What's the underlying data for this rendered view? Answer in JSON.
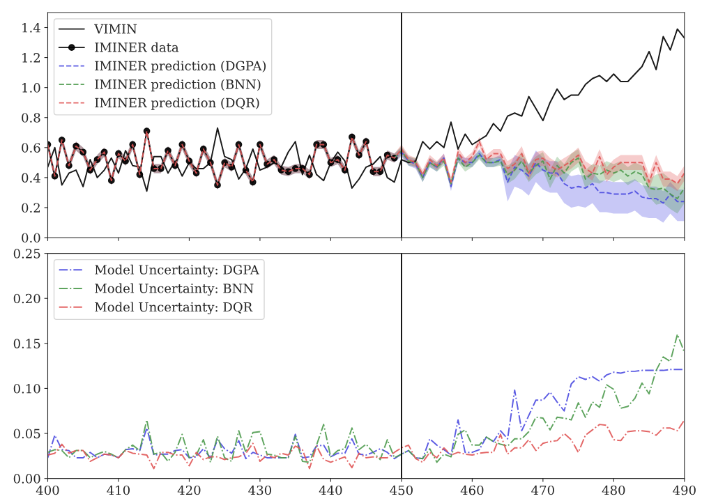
{
  "chart_data": [
    {
      "type": "line",
      "xlim": [
        400,
        490
      ],
      "ylim": [
        0,
        1.5
      ],
      "xticks": [
        400,
        410,
        420,
        430,
        440,
        450,
        460,
        470,
        480,
        490
      ],
      "yticks": [
        {
          "value": 0,
          "label": "0.0"
        },
        {
          "value": 0.2,
          "label": "0.2"
        },
        {
          "value": 0.4,
          "label": "0.4"
        },
        {
          "value": 0.6,
          "label": "0.6"
        },
        {
          "value": 0.8,
          "label": "0.8"
        },
        {
          "value": 1.0,
          "label": "1.0"
        },
        {
          "value": 1.2,
          "label": "1.2"
        },
        {
          "value": 1.4,
          "label": "1.4"
        }
      ],
      "tick_labels": "y",
      "legend": "top left",
      "ref_lines": [
        {
          "axis": "x",
          "value": 450,
          "color": "#000000"
        }
      ],
      "x": [
        400,
        401,
        402,
        403,
        404,
        405,
        406,
        407,
        408,
        409,
        410,
        411,
        412,
        413,
        414,
        415,
        416,
        417,
        418,
        419,
        420,
        421,
        422,
        423,
        424,
        425,
        426,
        427,
        428,
        429,
        430,
        431,
        432,
        433,
        434,
        435,
        436,
        437,
        438,
        439,
        440,
        441,
        442,
        443,
        444,
        445,
        446,
        447,
        448,
        449,
        450,
        451,
        452,
        453,
        454,
        455,
        456,
        457,
        458,
        459,
        460,
        461,
        462,
        463,
        464,
        465,
        466,
        467,
        468,
        469,
        470,
        471,
        472,
        473,
        474,
        475,
        476,
        477,
        478,
        479,
        480,
        481,
        482,
        483,
        484,
        485,
        486,
        487,
        488,
        489,
        490
      ],
      "series": [
        {
          "name": "VIMIN",
          "color": "#000000",
          "line_style": "solid",
          "marker": "none",
          "values": [
            0.47,
            0.6,
            0.35,
            0.43,
            0.45,
            0.34,
            0.52,
            0.4,
            0.45,
            0.53,
            0.43,
            0.58,
            0.48,
            0.47,
            0.31,
            0.54,
            0.54,
            0.43,
            0.51,
            0.41,
            0.5,
            0.46,
            0.46,
            0.5,
            0.73,
            0.54,
            0.52,
            0.39,
            0.46,
            0.59,
            0.45,
            0.47,
            0.5,
            0.47,
            0.57,
            0.64,
            0.42,
            0.55,
            0.42,
            0.38,
            0.5,
            0.57,
            0.51,
            0.33,
            0.39,
            0.47,
            0.49,
            0.54,
            0.4,
            0.37,
            0.52,
            0.5,
            0.51,
            0.64,
            0.59,
            0.64,
            0.6,
            0.77,
            0.59,
            0.69,
            0.62,
            0.65,
            0.68,
            0.76,
            0.71,
            0.81,
            0.83,
            0.81,
            0.94,
            0.86,
            0.78,
            0.9,
            0.99,
            0.92,
            0.95,
            0.95,
            1.02,
            1.06,
            1.08,
            1.04,
            1.09,
            1.04,
            1.04,
            1.09,
            1.14,
            1.24,
            1.12,
            1.34,
            1.25,
            1.39,
            1.33
          ]
        },
        {
          "name": "IMINER data",
          "color": "#000000",
          "line_style": "solid",
          "marker": "circle",
          "x": [
            400,
            401,
            402,
            403,
            404,
            405,
            406,
            407,
            408,
            409,
            410,
            411,
            412,
            413,
            414,
            415,
            416,
            417,
            418,
            419,
            420,
            421,
            422,
            423,
            424,
            425,
            426,
            427,
            428,
            429,
            430,
            431,
            432,
            433,
            434,
            435,
            436,
            437,
            438,
            439,
            440,
            441,
            442,
            443,
            444,
            445,
            446,
            447,
            448,
            449
          ],
          "values": [
            0.62,
            0.41,
            0.65,
            0.48,
            0.61,
            0.57,
            0.45,
            0.52,
            0.57,
            0.38,
            0.56,
            0.51,
            0.62,
            0.42,
            0.71,
            0.46,
            0.46,
            0.58,
            0.48,
            0.62,
            0.51,
            0.43,
            0.59,
            0.5,
            0.35,
            0.5,
            0.47,
            0.62,
            0.45,
            0.37,
            0.62,
            0.49,
            0.52,
            0.45,
            0.44,
            0.46,
            0.46,
            0.42,
            0.62,
            0.62,
            0.5,
            0.52,
            0.45,
            0.67,
            0.55,
            0.64,
            0.44,
            0.44,
            0.55,
            0.53
          ]
        },
        {
          "name": "IMINER prediction (DGPA)",
          "color": "#4a4ae0",
          "line_style": "dashed",
          "marker": "none",
          "values": [
            null,
            null,
            null,
            null,
            null,
            null,
            null,
            null,
            null,
            null,
            null,
            null,
            null,
            null,
            null,
            null,
            null,
            null,
            null,
            null,
            null,
            null,
            null,
            null,
            null,
            null,
            null,
            null,
            null,
            null,
            null,
            null,
            null,
            null,
            null,
            null,
            null,
            null,
            null,
            null,
            null,
            null,
            null,
            null,
            null,
            null,
            null,
            null,
            null,
            0.53,
            0.57,
            0.51,
            0.49,
            0.4,
            0.5,
            0.47,
            0.53,
            0.34,
            0.53,
            0.5,
            0.5,
            0.56,
            0.5,
            0.5,
            0.52,
            0.37,
            0.47,
            0.45,
            0.41,
            0.5,
            0.45,
            0.43,
            0.43,
            0.36,
            0.33,
            0.34,
            0.33,
            0.36,
            0.3,
            0.3,
            0.29,
            0.29,
            0.29,
            0.31,
            0.27,
            0.26,
            0.26,
            0.23,
            0.29,
            0.24,
            0.24
          ],
          "lower": [
            0.59,
            0.38,
            0.62,
            0.45,
            0.58,
            0.54,
            0.42,
            0.49,
            0.54,
            0.35,
            0.53,
            0.48,
            0.59,
            0.39,
            0.68,
            0.43,
            0.43,
            0.55,
            0.45,
            0.59,
            0.48,
            0.4,
            0.56,
            0.47,
            0.32,
            0.47,
            0.44,
            0.59,
            0.42,
            0.34,
            0.59,
            0.46,
            0.49,
            0.42,
            0.41,
            0.43,
            0.43,
            0.39,
            0.59,
            0.59,
            0.47,
            0.49,
            0.42,
            0.64,
            0.52,
            0.61,
            0.41,
            0.41,
            0.52,
            0.5,
            0.54,
            0.48,
            0.46,
            0.37,
            0.47,
            0.44,
            0.5,
            0.31,
            0.5,
            0.47,
            0.47,
            0.53,
            0.47,
            0.47,
            0.49,
            0.24,
            0.34,
            0.32,
            0.28,
            0.37,
            0.32,
            0.3,
            0.3,
            0.23,
            0.2,
            0.21,
            0.2,
            0.23,
            0.17,
            0.17,
            0.16,
            0.16,
            0.16,
            0.18,
            0.14,
            0.13,
            0.13,
            0.1,
            0.16,
            0.11,
            0.11
          ],
          "upper": [
            0.65,
            0.44,
            0.68,
            0.51,
            0.64,
            0.6,
            0.48,
            0.55,
            0.6,
            0.41,
            0.59,
            0.54,
            0.65,
            0.45,
            0.74,
            0.49,
            0.49,
            0.61,
            0.51,
            0.65,
            0.54,
            0.46,
            0.62,
            0.53,
            0.38,
            0.53,
            0.5,
            0.65,
            0.48,
            0.4,
            0.65,
            0.52,
            0.55,
            0.48,
            0.47,
            0.49,
            0.49,
            0.45,
            0.65,
            0.65,
            0.53,
            0.55,
            0.48,
            0.7,
            0.58,
            0.67,
            0.47,
            0.47,
            0.58,
            0.56,
            0.6,
            0.54,
            0.52,
            0.43,
            0.53,
            0.5,
            0.56,
            0.37,
            0.56,
            0.53,
            0.53,
            0.59,
            0.53,
            0.53,
            0.55,
            0.45,
            0.55,
            0.53,
            0.49,
            0.58,
            0.53,
            0.51,
            0.51,
            0.44,
            0.41,
            0.42,
            0.41,
            0.44,
            0.38,
            0.38,
            0.37,
            0.37,
            0.37,
            0.39,
            0.35,
            0.34,
            0.34,
            0.31,
            0.37,
            0.32,
            0.32
          ]
        },
        {
          "name": "IMINER prediction (BNN)",
          "color": "#4c9a4c",
          "line_style": "dashed",
          "marker": "none",
          "values": [
            null,
            null,
            null,
            null,
            null,
            null,
            null,
            null,
            null,
            null,
            null,
            null,
            null,
            null,
            null,
            null,
            null,
            null,
            null,
            null,
            null,
            null,
            null,
            null,
            null,
            null,
            null,
            null,
            null,
            null,
            null,
            null,
            null,
            null,
            null,
            null,
            null,
            null,
            null,
            null,
            null,
            null,
            null,
            null,
            null,
            null,
            null,
            null,
            null,
            0.53,
            0.58,
            0.51,
            0.5,
            0.4,
            0.5,
            0.47,
            0.51,
            0.36,
            0.53,
            0.47,
            0.5,
            0.55,
            0.5,
            0.5,
            0.51,
            0.42,
            0.45,
            0.51,
            0.43,
            0.48,
            0.51,
            0.39,
            0.48,
            0.43,
            0.5,
            0.53,
            0.39,
            0.43,
            0.42,
            0.45,
            0.43,
            0.45,
            0.41,
            0.44,
            0.42,
            0.33,
            0.32,
            0.33,
            0.29,
            0.26,
            0.33
          ],
          "lower": [
            0.59,
            0.38,
            0.62,
            0.45,
            0.58,
            0.54,
            0.42,
            0.49,
            0.54,
            0.35,
            0.53,
            0.48,
            0.59,
            0.39,
            0.68,
            0.43,
            0.43,
            0.55,
            0.45,
            0.59,
            0.48,
            0.4,
            0.56,
            0.47,
            0.32,
            0.47,
            0.44,
            0.59,
            0.42,
            0.34,
            0.59,
            0.46,
            0.49,
            0.42,
            0.41,
            0.43,
            0.43,
            0.39,
            0.59,
            0.59,
            0.47,
            0.49,
            0.42,
            0.64,
            0.52,
            0.61,
            0.41,
            0.41,
            0.52,
            0.5,
            0.55,
            0.48,
            0.47,
            0.37,
            0.47,
            0.44,
            0.48,
            0.33,
            0.5,
            0.44,
            0.47,
            0.52,
            0.47,
            0.47,
            0.48,
            0.36,
            0.39,
            0.45,
            0.37,
            0.42,
            0.45,
            0.33,
            0.42,
            0.37,
            0.44,
            0.47,
            0.33,
            0.37,
            0.36,
            0.39,
            0.37,
            0.39,
            0.35,
            0.38,
            0.36,
            0.27,
            0.22,
            0.23,
            0.19,
            0.16,
            0.23
          ],
          "upper": [
            0.65,
            0.44,
            0.68,
            0.51,
            0.64,
            0.6,
            0.48,
            0.55,
            0.6,
            0.41,
            0.59,
            0.54,
            0.65,
            0.45,
            0.74,
            0.49,
            0.49,
            0.61,
            0.51,
            0.65,
            0.54,
            0.46,
            0.62,
            0.53,
            0.38,
            0.53,
            0.5,
            0.65,
            0.48,
            0.4,
            0.65,
            0.52,
            0.55,
            0.48,
            0.47,
            0.49,
            0.49,
            0.45,
            0.65,
            0.65,
            0.53,
            0.55,
            0.48,
            0.7,
            0.58,
            0.67,
            0.47,
            0.47,
            0.58,
            0.56,
            0.61,
            0.54,
            0.53,
            0.43,
            0.53,
            0.5,
            0.54,
            0.39,
            0.56,
            0.5,
            0.53,
            0.58,
            0.53,
            0.53,
            0.54,
            0.48,
            0.51,
            0.57,
            0.49,
            0.54,
            0.57,
            0.45,
            0.54,
            0.49,
            0.56,
            0.59,
            0.45,
            0.49,
            0.48,
            0.51,
            0.49,
            0.51,
            0.47,
            0.5,
            0.48,
            0.39,
            0.42,
            0.43,
            0.39,
            0.36,
            0.43
          ]
        },
        {
          "name": "IMINER prediction (DQR)",
          "color": "#e05555",
          "line_style": "dashed",
          "marker": "none",
          "values": [
            0.62,
            0.41,
            0.65,
            0.48,
            0.61,
            0.57,
            0.45,
            0.52,
            0.57,
            0.38,
            0.56,
            0.51,
            0.62,
            0.42,
            0.71,
            0.46,
            0.46,
            0.58,
            0.48,
            0.62,
            0.51,
            0.43,
            0.59,
            0.5,
            0.35,
            0.5,
            0.47,
            0.62,
            0.45,
            0.37,
            0.62,
            0.49,
            0.52,
            0.45,
            0.44,
            0.46,
            0.46,
            0.42,
            0.62,
            0.62,
            0.5,
            0.52,
            0.45,
            0.67,
            0.55,
            0.64,
            0.44,
            0.44,
            0.55,
            0.53,
            0.59,
            0.52,
            0.5,
            0.42,
            0.52,
            0.48,
            0.53,
            0.37,
            0.57,
            0.5,
            0.54,
            0.64,
            0.52,
            0.56,
            0.56,
            0.46,
            0.49,
            0.56,
            0.43,
            0.52,
            0.53,
            0.48,
            0.45,
            0.48,
            0.51,
            0.55,
            0.46,
            0.43,
            0.54,
            0.42,
            0.47,
            0.5,
            0.5,
            0.5,
            0.5,
            0.37,
            0.5,
            0.39,
            0.39,
            0.36,
            0.43
          ],
          "lower": [
            0.59,
            0.38,
            0.62,
            0.45,
            0.58,
            0.54,
            0.42,
            0.49,
            0.54,
            0.35,
            0.53,
            0.48,
            0.59,
            0.39,
            0.68,
            0.43,
            0.43,
            0.55,
            0.45,
            0.59,
            0.48,
            0.4,
            0.56,
            0.47,
            0.32,
            0.47,
            0.44,
            0.59,
            0.42,
            0.34,
            0.59,
            0.46,
            0.49,
            0.42,
            0.41,
            0.43,
            0.43,
            0.39,
            0.59,
            0.59,
            0.47,
            0.49,
            0.42,
            0.64,
            0.52,
            0.61,
            0.41,
            0.41,
            0.52,
            0.5,
            0.56,
            0.49,
            0.47,
            0.39,
            0.49,
            0.45,
            0.5,
            0.34,
            0.54,
            0.47,
            0.51,
            0.61,
            0.49,
            0.53,
            0.53,
            0.41,
            0.44,
            0.51,
            0.38,
            0.47,
            0.48,
            0.43,
            0.4,
            0.43,
            0.46,
            0.5,
            0.41,
            0.38,
            0.49,
            0.37,
            0.42,
            0.45,
            0.45,
            0.45,
            0.45,
            0.32,
            0.45,
            0.34,
            0.34,
            0.31,
            0.38
          ],
          "upper": [
            0.65,
            0.44,
            0.68,
            0.51,
            0.64,
            0.6,
            0.48,
            0.55,
            0.6,
            0.41,
            0.59,
            0.54,
            0.65,
            0.45,
            0.74,
            0.49,
            0.49,
            0.61,
            0.51,
            0.65,
            0.54,
            0.46,
            0.62,
            0.53,
            0.38,
            0.53,
            0.5,
            0.65,
            0.48,
            0.4,
            0.65,
            0.52,
            0.55,
            0.48,
            0.47,
            0.49,
            0.49,
            0.45,
            0.65,
            0.65,
            0.53,
            0.55,
            0.48,
            0.7,
            0.58,
            0.67,
            0.47,
            0.47,
            0.58,
            0.56,
            0.62,
            0.55,
            0.53,
            0.45,
            0.55,
            0.51,
            0.56,
            0.4,
            0.6,
            0.53,
            0.57,
            0.67,
            0.55,
            0.59,
            0.59,
            0.51,
            0.54,
            0.61,
            0.48,
            0.57,
            0.58,
            0.53,
            0.5,
            0.53,
            0.56,
            0.6,
            0.51,
            0.48,
            0.59,
            0.47,
            0.52,
            0.55,
            0.55,
            0.55,
            0.55,
            0.42,
            0.55,
            0.44,
            0.44,
            0.41,
            0.48
          ]
        }
      ]
    },
    {
      "type": "line",
      "xlim": [
        400,
        490
      ],
      "ylim": [
        0,
        0.25
      ],
      "xticks": [
        400,
        410,
        420,
        430,
        440,
        450,
        460,
        470,
        480,
        490
      ],
      "yticks": [
        {
          "value": 0,
          "label": "0.00"
        },
        {
          "value": 0.05,
          "label": "0.05"
        },
        {
          "value": 0.1,
          "label": "0.10"
        },
        {
          "value": 0.15,
          "label": "0.15"
        },
        {
          "value": 0.2,
          "label": "0.20"
        },
        {
          "value": 0.25,
          "label": "0.25"
        }
      ],
      "legend": "top left",
      "ref_lines": [
        {
          "axis": "x",
          "value": 450,
          "color": "#000000"
        }
      ],
      "x": [
        400,
        401,
        402,
        403,
        404,
        405,
        406,
        407,
        408,
        409,
        410,
        411,
        412,
        413,
        414,
        415,
        416,
        417,
        418,
        419,
        420,
        421,
        422,
        423,
        424,
        425,
        426,
        427,
        428,
        429,
        430,
        431,
        432,
        433,
        434,
        435,
        436,
        437,
        438,
        439,
        440,
        441,
        442,
        443,
        444,
        445,
        446,
        447,
        448,
        449,
        450,
        451,
        452,
        453,
        454,
        455,
        456,
        457,
        458,
        459,
        460,
        461,
        462,
        463,
        464,
        465,
        466,
        467,
        468,
        469,
        470,
        471,
        472,
        473,
        474,
        475,
        476,
        477,
        478,
        479,
        480,
        481,
        482,
        483,
        484,
        485,
        486,
        487,
        488,
        489,
        490
      ],
      "series": [
        {
          "name": "Model Uncertainty: DGPA",
          "color": "#4a4ae0",
          "line_style": "dashdot",
          "marker": "none",
          "values": [
            0.023,
            0.048,
            0.032,
            0.031,
            0.023,
            0.023,
            0.029,
            0.023,
            0.027,
            0.026,
            0.023,
            0.032,
            0.033,
            0.031,
            0.056,
            0.026,
            0.027,
            0.027,
            0.031,
            0.032,
            0.023,
            0.024,
            0.033,
            0.023,
            0.043,
            0.033,
            0.028,
            0.042,
            0.022,
            0.029,
            0.026,
            0.023,
            0.023,
            0.023,
            0.023,
            0.049,
            0.023,
            0.024,
            0.036,
            0.037,
            0.024,
            0.028,
            0.028,
            0.044,
            0.027,
            0.026,
            0.029,
            0.033,
            0.029,
            0.022,
            0.027,
            0.031,
            0.023,
            0.022,
            0.044,
            0.037,
            0.032,
            0.026,
            0.065,
            0.029,
            0.029,
            0.032,
            0.046,
            0.041,
            0.053,
            0.044,
            0.098,
            0.053,
            0.07,
            0.087,
            0.087,
            0.096,
            0.085,
            0.075,
            0.105,
            0.113,
            0.11,
            0.113,
            0.108,
            0.115,
            0.118,
            0.117,
            0.119,
            0.119,
            0.12,
            0.12,
            0.12,
            0.12,
            0.121,
            0.121,
            0.121
          ]
        },
        {
          "name": "Model Uncertainty: BNN",
          "color": "#4c9a4c",
          "line_style": "dashdot",
          "marker": "none",
          "values": [
            0.029,
            0.032,
            0.031,
            0.023,
            0.031,
            0.031,
            0.023,
            0.027,
            0.03,
            0.027,
            0.023,
            0.032,
            0.037,
            0.031,
            0.065,
            0.027,
            0.029,
            0.019,
            0.029,
            0.049,
            0.023,
            0.026,
            0.043,
            0.018,
            0.047,
            0.023,
            0.019,
            0.053,
            0.029,
            0.051,
            0.052,
            0.027,
            0.026,
            0.023,
            0.023,
            0.047,
            0.019,
            0.018,
            0.037,
            0.06,
            0.024,
            0.031,
            0.033,
            0.056,
            0.032,
            0.038,
            0.029,
            0.021,
            0.043,
            0.023,
            0.027,
            0.031,
            0.023,
            0.022,
            0.033,
            0.018,
            0.027,
            0.024,
            0.049,
            0.054,
            0.037,
            0.037,
            0.046,
            0.041,
            0.038,
            0.036,
            0.044,
            0.044,
            0.052,
            0.068,
            0.067,
            0.054,
            0.068,
            0.067,
            0.065,
            0.084,
            0.068,
            0.085,
            0.079,
            0.104,
            0.099,
            0.078,
            0.08,
            0.089,
            0.106,
            0.094,
            0.12,
            0.135,
            0.13,
            0.16,
            0.14
          ]
        },
        {
          "name": "Model Uncertainty: DQR",
          "color": "#e05555",
          "line_style": "dashdot",
          "marker": "none",
          "values": [
            0.026,
            0.028,
            0.038,
            0.028,
            0.031,
            0.031,
            0.019,
            0.023,
            0.027,
            0.026,
            0.023,
            0.031,
            0.028,
            0.027,
            0.026,
            0.011,
            0.029,
            0.029,
            0.026,
            0.026,
            0.014,
            0.029,
            0.021,
            0.024,
            0.024,
            0.021,
            0.023,
            0.024,
            0.028,
            0.039,
            0.019,
            0.026,
            0.023,
            0.028,
            0.026,
            0.036,
            0.032,
            0.011,
            0.036,
            0.021,
            0.018,
            0.021,
            0.024,
            0.012,
            0.028,
            0.023,
            0.024,
            0.023,
            0.023,
            0.029,
            0.034,
            0.037,
            0.022,
            0.018,
            0.029,
            0.023,
            0.034,
            0.026,
            0.029,
            0.027,
            0.026,
            0.028,
            0.029,
            0.029,
            0.049,
            0.027,
            0.034,
            0.034,
            0.043,
            0.031,
            0.039,
            0.041,
            0.042,
            0.05,
            0.043,
            0.029,
            0.048,
            0.054,
            0.06,
            0.059,
            0.043,
            0.042,
            0.052,
            0.053,
            0.053,
            0.052,
            0.048,
            0.056,
            0.056,
            0.053,
            0.065
          ]
        }
      ]
    }
  ]
}
